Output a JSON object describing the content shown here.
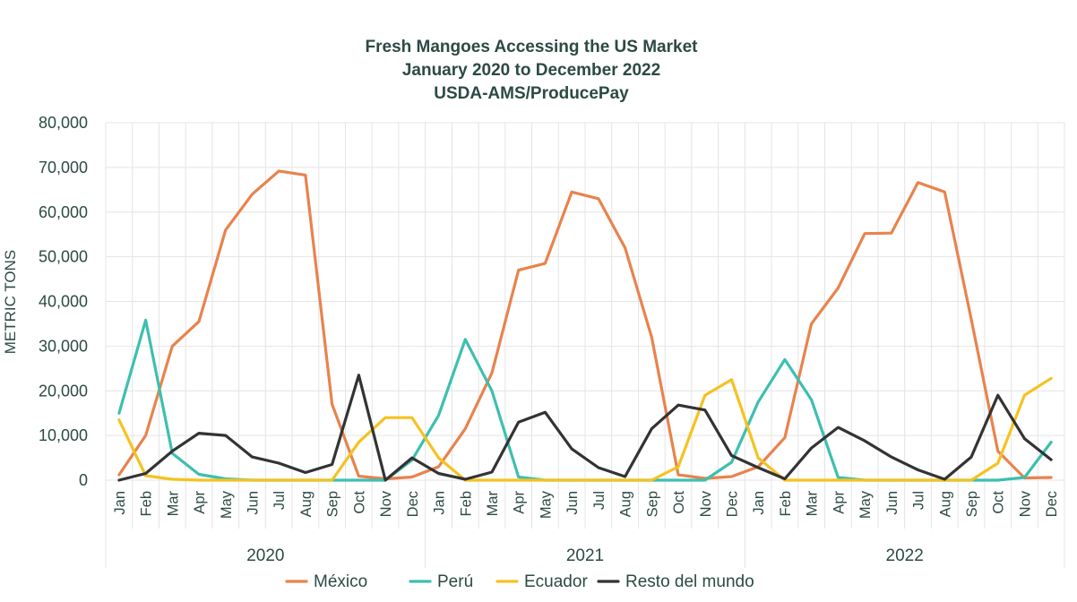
{
  "chart_data": {
    "type": "line",
    "title": "Fresh Mangoes Accessing the US Market",
    "subtitle": "January 2020 to December 2022",
    "source": "USDA-AMS/ProducePay",
    "ylabel": "METRIC TONS",
    "xlabel": "",
    "ylim": [
      0,
      80000
    ],
    "yticks": [
      "0",
      "10,000",
      "20,000",
      "30,000",
      "40,000",
      "50,000",
      "60,000",
      "70,000",
      "80,000"
    ],
    "ytick_values": [
      0,
      10000,
      20000,
      30000,
      40000,
      50000,
      60000,
      70000,
      80000
    ],
    "months": [
      "Jan",
      "Feb",
      "Mar",
      "Apr",
      "May",
      "Jun",
      "Jul",
      "Aug",
      "Sep",
      "Oct",
      "Nov",
      "Dec"
    ],
    "years": [
      "2020",
      "2021",
      "2022"
    ],
    "grid": true,
    "legend_position": "bottom",
    "series": [
      {
        "name": "México",
        "color": "#e8834d",
        "values": [
          1200,
          10000,
          30000,
          35500,
          56000,
          64000,
          69200,
          68300,
          17000,
          900,
          300,
          700,
          3000,
          11500,
          24000,
          47000,
          48500,
          64500,
          63000,
          52000,
          32000,
          1200,
          400,
          800,
          3000,
          9500,
          35000,
          43000,
          55200,
          55300,
          66600,
          64500,
          36000,
          6500,
          500,
          600
        ]
      },
      {
        "name": "Perú",
        "color": "#3dbfb0",
        "values": [
          15000,
          35800,
          6000,
          1300,
          300,
          0,
          0,
          0,
          0,
          0,
          0,
          4500,
          14500,
          31500,
          20000,
          700,
          0,
          0,
          0,
          0,
          0,
          0,
          0,
          4000,
          17500,
          27000,
          18000,
          600,
          0,
          0,
          0,
          0,
          0,
          0,
          600,
          8500
        ]
      },
      {
        "name": "Ecuador",
        "color": "#f5c220",
        "values": [
          13500,
          1000,
          200,
          0,
          0,
          0,
          0,
          0,
          0,
          8500,
          14000,
          14000,
          5000,
          0,
          0,
          0,
          0,
          0,
          0,
          0,
          0,
          3000,
          19000,
          22500,
          5000,
          0,
          0,
          0,
          0,
          0,
          0,
          0,
          0,
          3800,
          19000,
          22800
        ]
      },
      {
        "name": "Resto del mundo",
        "color": "#333333",
        "values": [
          0,
          1500,
          6500,
          10500,
          10000,
          5200,
          3800,
          1700,
          3500,
          23500,
          0,
          5000,
          1500,
          200,
          1800,
          13000,
          15200,
          7000,
          2800,
          800,
          11500,
          16800,
          15700,
          5500,
          2800,
          300,
          7200,
          11800,
          8800,
          5200,
          2300,
          200,
          5200,
          19000,
          9300,
          4600
        ]
      }
    ]
  }
}
